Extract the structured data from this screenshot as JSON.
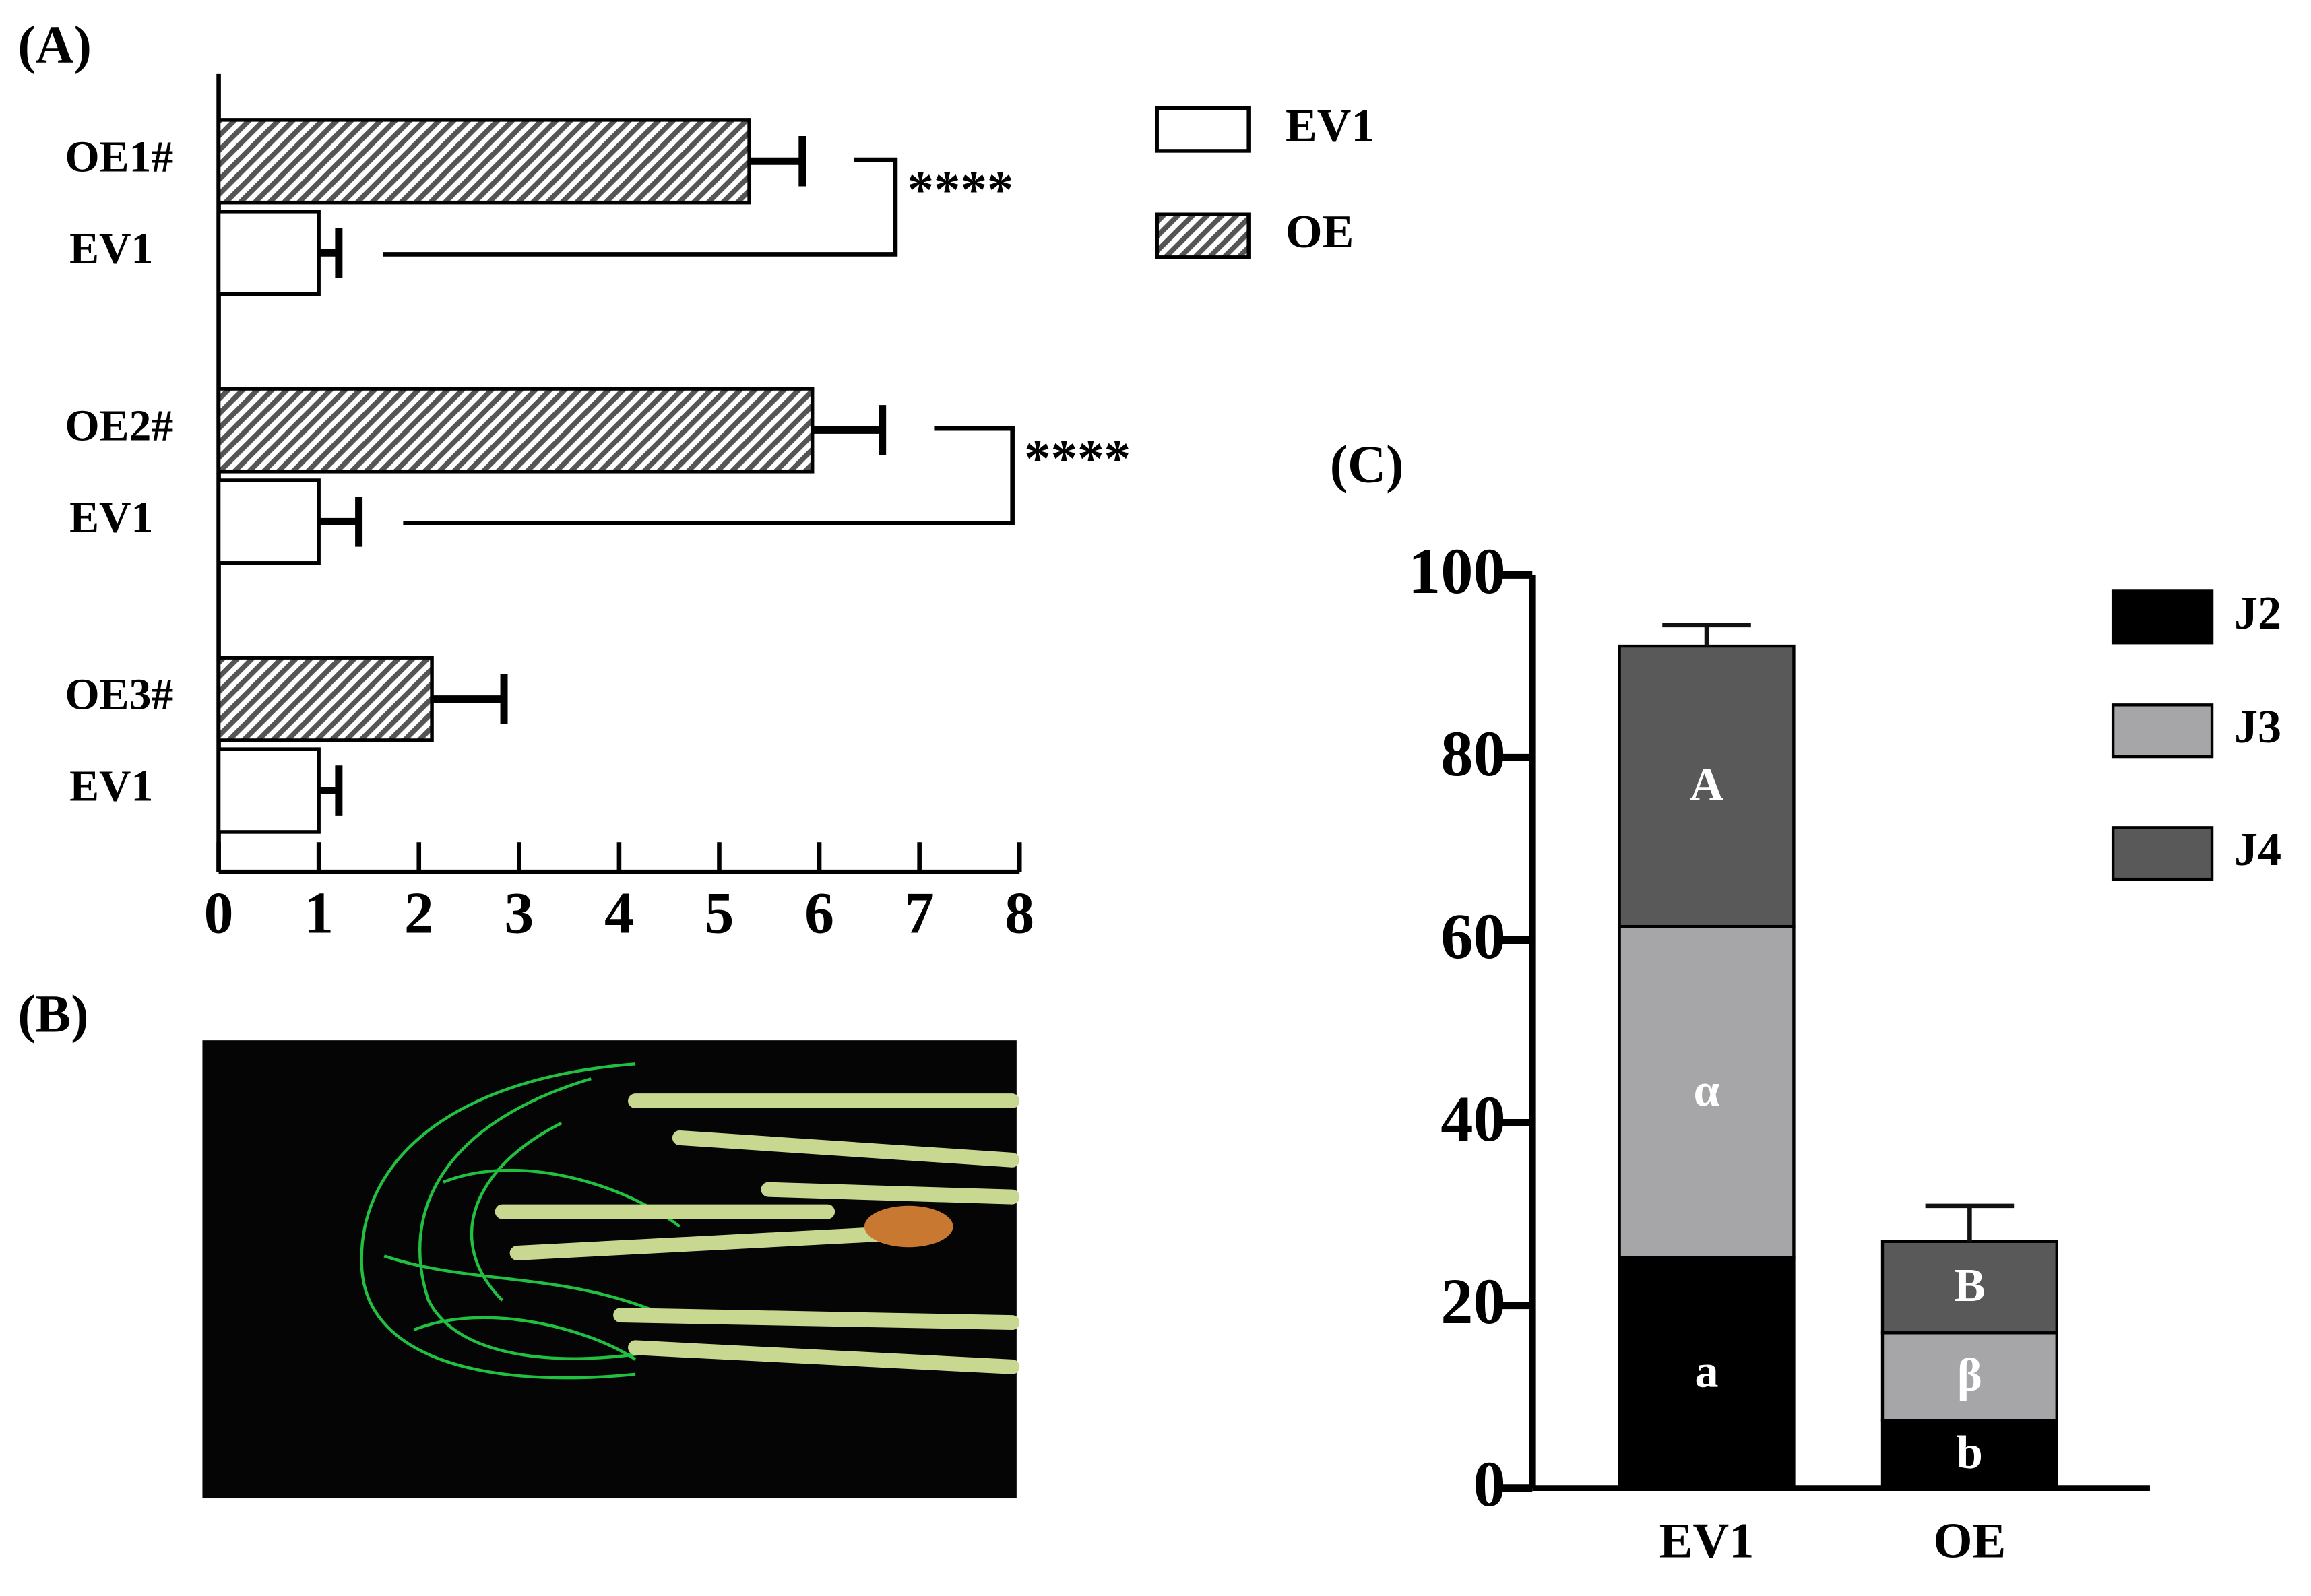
{
  "chart_data": [
    {
      "type": "hbar_pairs",
      "title": "(A)",
      "categories": [
        "OE1#",
        "OE2#",
        "OE3#"
      ],
      "control_labels": [
        "EV1",
        "EV1",
        "EV1"
      ],
      "series": [
        {
          "name": "EV1",
          "color": "#ffffff",
          "values": [
            1,
            1,
            1
          ],
          "errors": [
            0.2,
            0.4,
            0.2
          ]
        },
        {
          "name": "OE",
          "color": "#8c8c8c",
          "pattern": "hatch",
          "values": [
            5.3,
            5.93,
            2.13
          ],
          "errors": [
            0.53,
            0.7,
            0.72
          ]
        }
      ],
      "annotations": [
        {
          "text": "****",
          "group": 0
        },
        {
          "text": "****",
          "group": 1
        }
      ],
      "xlim": [
        0,
        8
      ],
      "xticks": [
        0,
        1,
        2,
        3,
        4,
        5,
        6,
        7,
        8
      ],
      "grid": false,
      "legend": "top-right"
    },
    {
      "type": "image",
      "title": "(B)"
    },
    {
      "type": "stacked_bar",
      "title": "(C)",
      "categories": [
        "EV1",
        "OE"
      ],
      "series": [
        {
          "name": "J2",
          "color": "#000000",
          "values": [
            25.2,
            7.4
          ],
          "errors": [
            2.5,
            1.8
          ],
          "letters": [
            "a",
            "b"
          ]
        },
        {
          "name": "J3",
          "color": "#a6a6a8",
          "values": [
            36.3,
            9.6
          ],
          "errors": [
            4,
            4.2
          ],
          "letters": [
            "α",
            "β"
          ]
        },
        {
          "name": "J4",
          "color": "#595959",
          "values": [
            30.7,
            10
          ],
          "errors": [
            2.3,
            3.9
          ],
          "letters": [
            "A",
            "B"
          ]
        }
      ],
      "ylim": [
        0,
        100
      ],
      "yticks": [
        0,
        20,
        40,
        60,
        80,
        100
      ],
      "grid": false,
      "legend": "top-right"
    }
  ]
}
